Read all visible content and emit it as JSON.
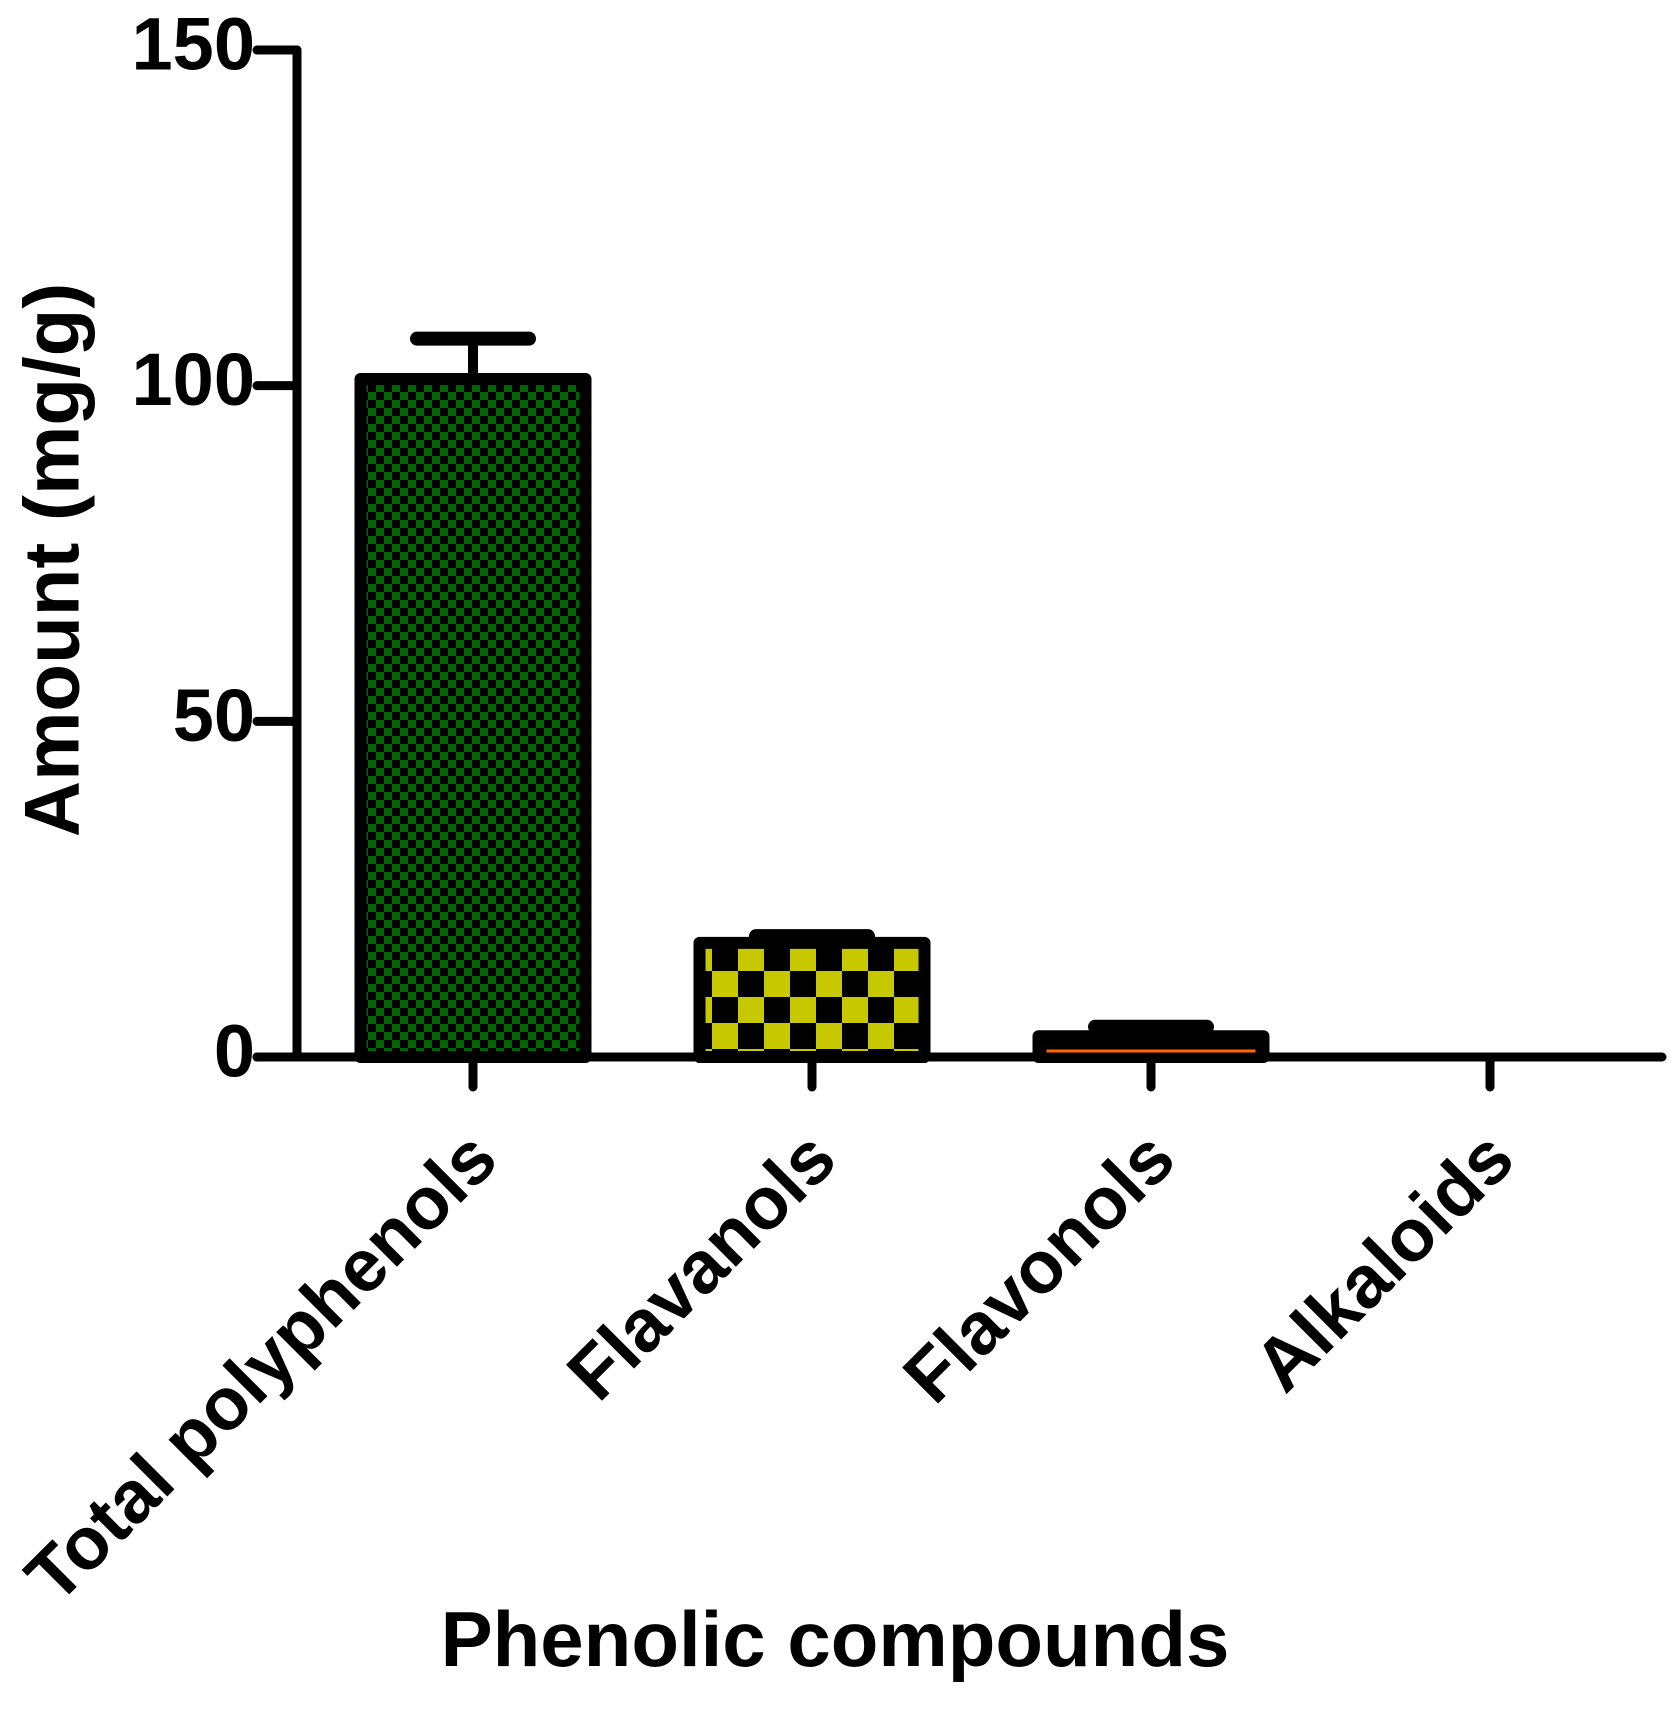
{
  "chart_data": {
    "type": "bar",
    "title": "",
    "xlabel": "Phenolic compounds",
    "ylabel": "Amount (mg/g)",
    "ylim": [
      0,
      150
    ],
    "yticks": [
      "0",
      "50",
      "100",
      "150"
    ],
    "ytick_values": [
      0,
      50,
      100,
      150
    ],
    "categories": [
      "Total polyphenols",
      "Flavanols",
      "Flavonols",
      "Alkaloids"
    ],
    "values": [
      101,
      17,
      2.5,
      0
    ],
    "errors": [
      6,
      1,
      2,
      0
    ],
    "grid": false,
    "legend": "none",
    "bar_styles": [
      {
        "pattern": "checker-fine",
        "fill_color": "#006400",
        "check_color": "#000000"
      },
      {
        "pattern": "checker-coarse",
        "fill_color": "#c8c800",
        "check_color": "#000000"
      },
      {
        "pattern": "solid",
        "fill_color": "#ff6600",
        "check_color": "#000000"
      },
      {
        "pattern": "solid",
        "fill_color": "#000000",
        "check_color": "#000000"
      }
    ]
  }
}
